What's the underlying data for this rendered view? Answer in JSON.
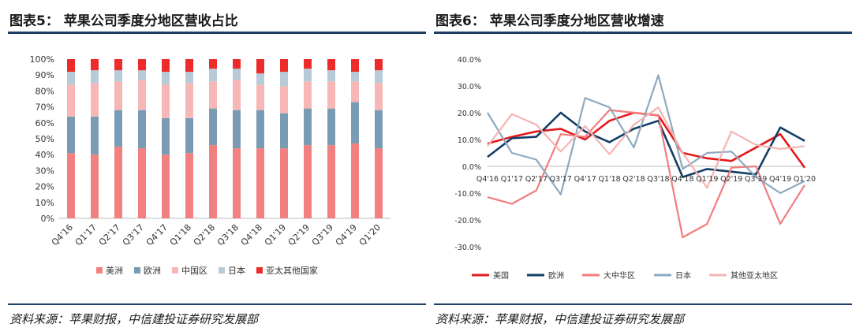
{
  "figures": [
    {
      "title": "图表5： 苹果公司季度分地区营收占比",
      "source": "资料来源：苹果财报，中信建投证券研究发展部"
    },
    {
      "title": "图表6： 苹果公司季度分地区营收增速",
      "source": "资料来源：苹果财报，中信建投证券研究发展部"
    }
  ],
  "chart_data": [
    {
      "type": "bar",
      "stacked": true,
      "percent": true,
      "categories": [
        "Q4'16",
        "Q1'17",
        "Q2'17",
        "Q3'17",
        "Q4'17",
        "Q1'18",
        "Q2'18",
        "Q3'18",
        "Q4'18",
        "Q1'19",
        "Q2'19",
        "Q3'19",
        "Q4'19",
        "Q1'20"
      ],
      "ylim": [
        0,
        100
      ],
      "yticks": [
        "0%",
        "10%",
        "20%",
        "30%",
        "40%",
        "50%",
        "60%",
        "70%",
        "80%",
        "90%",
        "100%"
      ],
      "legend_position": "bottom",
      "grid": false,
      "series": [
        {
          "name": "美洲",
          "color": "#f28080",
          "values": [
            41,
            40,
            45,
            44,
            40,
            41,
            46,
            44,
            44,
            44,
            46,
            46,
            47,
            44
          ]
        },
        {
          "name": "欧洲",
          "color": "#7a9bb4",
          "values": [
            23,
            24,
            23,
            24,
            23,
            22,
            23,
            24,
            24,
            22,
            23,
            23,
            26,
            24
          ]
        },
        {
          "name": "中国区",
          "color": "#f7b7b7",
          "values": [
            20,
            21,
            18,
            19,
            21,
            22,
            17,
            19,
            16,
            17,
            17,
            17,
            13,
            17
          ]
        },
        {
          "name": "日本",
          "color": "#b7cad8",
          "values": [
            8,
            8,
            7,
            6,
            8,
            7,
            8,
            7,
            7,
            9,
            8,
            7,
            6,
            8
          ]
        },
        {
          "name": "亚太其他国家",
          "color": "#ed2b2b",
          "values": [
            8,
            7,
            7,
            7,
            8,
            8,
            6,
            6,
            9,
            8,
            6,
            7,
            8,
            7
          ]
        }
      ]
    },
    {
      "type": "line",
      "categories": [
        "Q4'16",
        "Q1'17",
        "Q2'17",
        "Q3'17",
        "Q4'17",
        "Q1'18",
        "Q2'18",
        "Q3'18",
        "Q4'18",
        "Q1'19",
        "Q2'19",
        "Q3'19",
        "Q4'19",
        "Q1'20"
      ],
      "ylim": [
        -30,
        40
      ],
      "yticks": [
        "-30.0%",
        "-20.0%",
        "-10.0%",
        "0.0%",
        "10.0%",
        "20.0%",
        "30.0%",
        "40.0%"
      ],
      "legend_position": "bottom",
      "grid": false,
      "series": [
        {
          "name": "美国",
          "color": "#e31a1c",
          "width": 2.6,
          "values": [
            8.5,
            11,
            13,
            14,
            10,
            17,
            20,
            19,
            5,
            3,
            2,
            7,
            12,
            -0.5
          ]
        },
        {
          "name": "欧洲",
          "color": "#123e66",
          "width": 2.6,
          "values": [
            3.5,
            10.5,
            11,
            20,
            13,
            9,
            14,
            17,
            -4,
            -1,
            -2,
            -3,
            14.5,
            9.5
          ]
        },
        {
          "name": "大中华区",
          "color": "#f27d7d",
          "width": 2.2,
          "values": [
            -11.5,
            -14,
            -9,
            12,
            11,
            21,
            20,
            19,
            -26.5,
            -21.5,
            -0.5,
            0,
            -21.5,
            -7
          ]
        },
        {
          "name": "日本",
          "color": "#8ea9bf",
          "width": 2.2,
          "values": [
            20,
            5,
            2.5,
            -10.5,
            25.5,
            22,
            7,
            34,
            -1,
            5,
            5.5,
            -4,
            -10,
            -5.5
          ]
        },
        {
          "name": "其他亚太地区",
          "color": "#f5b4b4",
          "width": 2.2,
          "values": [
            7.5,
            19.5,
            15.5,
            5.5,
            15,
            4.5,
            15.5,
            22,
            5,
            -8,
            13,
            8,
            6.5,
            7.5
          ]
        }
      ]
    }
  ]
}
